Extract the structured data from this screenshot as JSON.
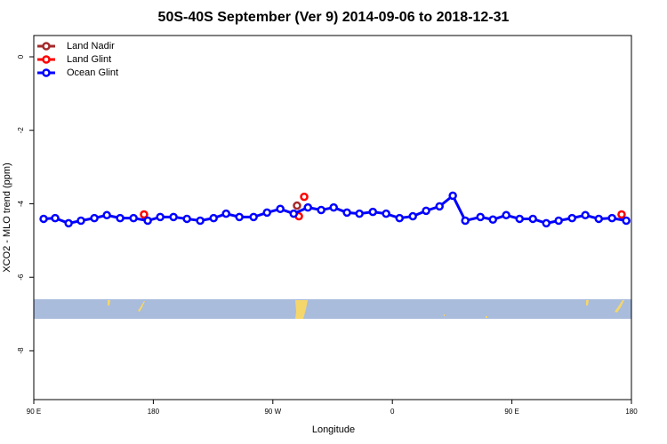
{
  "chart_data": {
    "type": "line",
    "title": "50S-40S September (Ver 9)   2014-09-06 to 2018-12-31",
    "xlabel": "Longitude",
    "ylabel": "XCO2 - MLO trend (ppm)",
    "xlim": [
      90,
      540
    ],
    "ylim": [
      -9.33,
      0.58
    ],
    "xticks": [
      {
        "value": 90,
        "label": "90 E"
      },
      180,
      {
        "value": 270,
        "label": "90 W"
      },
      {
        "value": 360,
        "label": "0"
      },
      {
        "value": 450,
        "label": "90 E"
      },
      {
        "value": 540,
        "label": "180"
      }
    ],
    "yticks": [
      0,
      -2,
      -4,
      -6,
      -8
    ],
    "legend": "top-left",
    "series": [
      {
        "name": "Land Nadir",
        "color": "#a52a2a",
        "line": false,
        "x": [
          288.2
        ],
        "values": [
          -4.05
        ]
      },
      {
        "name": "Land Glint",
        "color": "#ff0000",
        "line": false,
        "x": [
          173.0,
          289.6,
          293.6,
          532.6
        ],
        "values": [
          -4.29,
          -4.34,
          -3.81,
          -4.29
        ]
      },
      {
        "name": "Ocean Glint",
        "color": "#0000ff",
        "line": true,
        "x": [
          97.4,
          106.1,
          116.2,
          125.5,
          135.6,
          145.0,
          155.0,
          165.1,
          175.8,
          185.2,
          195.2,
          205.3,
          215.3,
          225.4,
          234.8,
          244.8,
          255.5,
          265.6,
          275.6,
          285.7,
          296.4,
          306.4,
          315.8,
          325.8,
          335.2,
          345.3,
          355.3,
          365.4,
          375.4,
          385.4,
          395.5,
          405.5,
          414.9,
          426.3,
          435.7,
          445.7,
          455.8,
          465.8,
          475.9,
          485.2,
          495.3,
          505.3,
          515.4,
          525.4,
          536.1
        ],
        "values": [
          -4.41,
          -4.39,
          -4.53,
          -4.46,
          -4.39,
          -4.31,
          -4.39,
          -4.39,
          -4.46,
          -4.36,
          -4.36,
          -4.41,
          -4.46,
          -4.39,
          -4.27,
          -4.36,
          -4.36,
          -4.24,
          -4.14,
          -4.27,
          -4.1,
          -4.17,
          -4.1,
          -4.24,
          -4.27,
          -4.22,
          -4.27,
          -4.39,
          -4.34,
          -4.19,
          -4.07,
          -3.78,
          -4.46,
          -4.36,
          -4.43,
          -4.31,
          -4.41,
          -4.41,
          -4.53,
          -4.46,
          -4.39,
          -4.31,
          -4.41,
          -4.39,
          -4.46
        ]
      }
    ]
  }
}
